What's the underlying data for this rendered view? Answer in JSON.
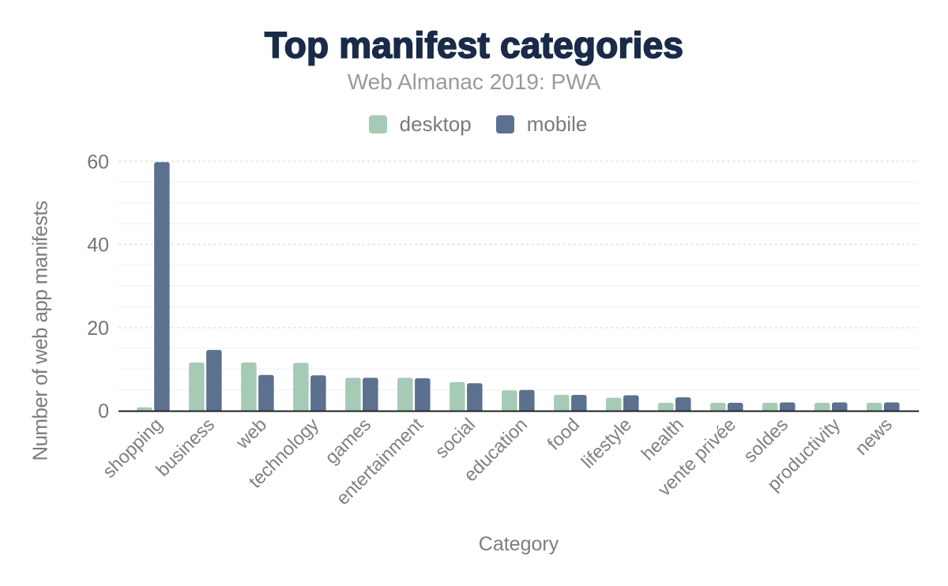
{
  "chart_data": {
    "type": "bar",
    "title": "Top manifest categories",
    "subtitle": "Web Almanac 2019: PWA",
    "xlabel": "Category",
    "ylabel": "Number of web app manifests",
    "categories": [
      "shopping",
      "business",
      "web",
      "technology",
      "games",
      "entertainment",
      "social",
      "education",
      "food",
      "lifestyle",
      "health",
      "vente privée",
      "soldes",
      "productivity",
      "news"
    ],
    "series": [
      {
        "name": "desktop",
        "color": "#a5cab5",
        "values": [
          0.8,
          11.6,
          11.6,
          11.5,
          7.9,
          7.9,
          6.9,
          4.9,
          3.8,
          3.1,
          1.9,
          1.9,
          1.9,
          1.9,
          1.9
        ]
      },
      {
        "name": "mobile",
        "color": "#5c7090",
        "values": [
          59.8,
          14.6,
          8.6,
          8.5,
          7.9,
          7.8,
          6.6,
          5.0,
          3.8,
          3.7,
          3.2,
          1.9,
          2.0,
          2.0,
          2.0
        ]
      }
    ],
    "yticks": [
      0,
      20,
      40,
      60
    ],
    "ylim": [
      0,
      62
    ],
    "minor_tick_step": 5,
    "legend_position": "top-center",
    "grid": "major-dashed-minor-solid",
    "style": {
      "title_color": "#1a2b49",
      "subtitle_color": "#9a9a9a",
      "legend_text_color": "#7a7a7a",
      "axis_title_color": "#7d7d7d",
      "ytick_color": "#757575",
      "xtick_color": "#808080",
      "axis_line_color": "#222222",
      "major_grid_color": "#e9e9e9",
      "minor_grid_color": "#f6f6f6",
      "background_color": "#ffffff"
    }
  }
}
